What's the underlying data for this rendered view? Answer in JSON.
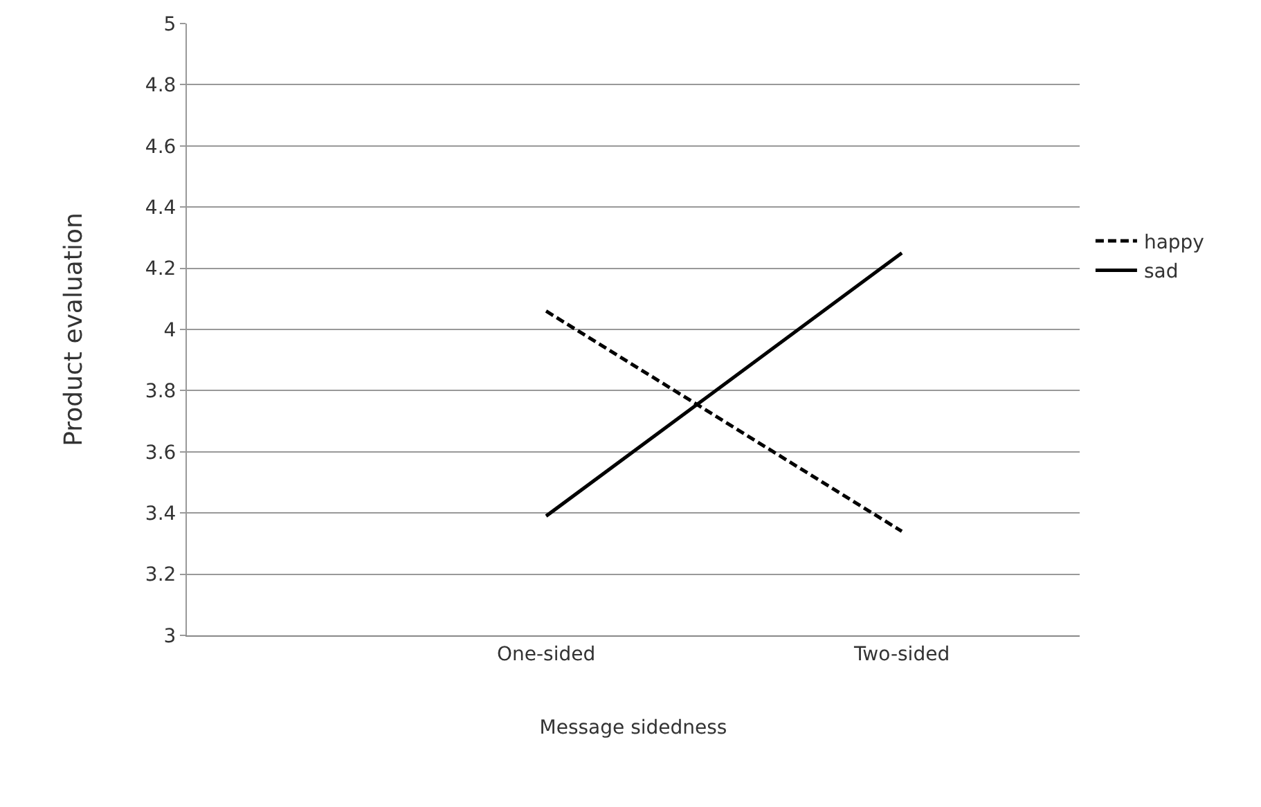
{
  "chart_data": {
    "type": "line",
    "xlabel": "Message sidedness",
    "ylabel": "Product evaluation",
    "categories": [
      "One-sided",
      "Two-sided"
    ],
    "series": [
      {
        "name": "happy",
        "color": "#000000",
        "line_style": "dashed",
        "values": [
          4.06,
          3.34
        ]
      },
      {
        "name": "sad",
        "color": "#000000",
        "line_style": "solid",
        "values": [
          3.39,
          4.25
        ]
      }
    ],
    "ylim": [
      3,
      5
    ],
    "yticks": [
      3,
      3.2,
      3.4,
      3.6,
      3.8,
      4,
      4.2,
      4.4,
      4.6,
      4.8,
      5
    ],
    "grid": "y",
    "legend": "right",
    "marker": "none"
  }
}
